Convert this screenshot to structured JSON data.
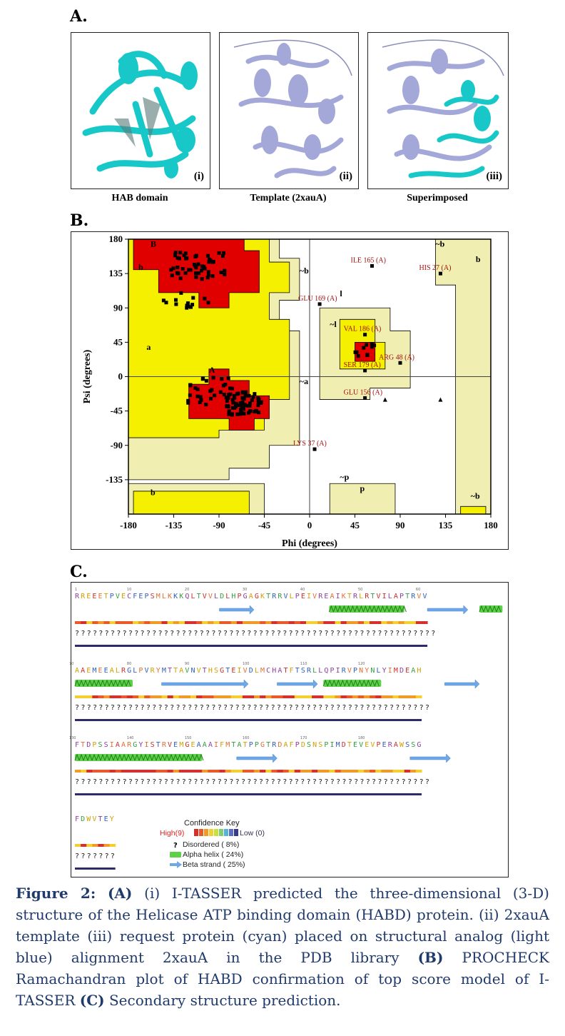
{
  "panel_a": {
    "label": "A.",
    "images": [
      {
        "numeral": "(i)",
        "caption": "HAB domain"
      },
      {
        "numeral": "(ii)",
        "caption": "Template  (2xauA)"
      },
      {
        "numeral": "(iii)",
        "caption": "Superimposed"
      }
    ]
  },
  "panel_b": {
    "label": "B.",
    "xlabel": "Phi (degrees)",
    "ylabel": "Psi (degrees)",
    "xticks": [
      "-180",
      "-135",
      "-90",
      "-45",
      "0",
      "45",
      "90",
      "135",
      "180"
    ],
    "yticks": [
      "180",
      "135",
      "90",
      "45",
      "0",
      "-45",
      "-90",
      "-135"
    ],
    "region_labels": [
      "B",
      "b",
      "a",
      "A",
      "b",
      "~b",
      "l",
      "~l",
      "~a",
      "~p",
      "p",
      "~b",
      "b",
      "~b"
    ],
    "annotations": [
      "ILE 165 (A)",
      "HIS 27 (A)",
      "GLU 169 (A)",
      "VAL 186 (A)",
      "ARG 48 (A)",
      "SER 179 (A)",
      "GLU 156 (A)",
      "LYS 37 (A)"
    ]
  },
  "panel_c": {
    "label": "C.",
    "rows": [
      {
        "seq": "RREEETPVECFEPSMLKKKQLTVVLDLHPGAGKTRRVLPEIVREAIKTRLRTVILAPTRVV",
        "numbers": [
          "1",
          "10",
          "20",
          "30",
          "40",
          "50",
          "60"
        ]
      },
      {
        "seq": "AAEMEEALRGLPVRYMTTAVNVTHSGTEIVDLMCHATFTSRLLQPIRVPNYNLYIMDEAH",
        "numbers": [
          "70",
          "80",
          "90",
          "100",
          "110",
          "120"
        ]
      },
      {
        "seq": "FTDPSSIAARGYISTRVEMGEAAAIFMTATPPGTRDAFPDSNSPIMDTEVEVPERAWSSG",
        "numbers": [
          "130",
          "140",
          "150",
          "160",
          "170",
          "180"
        ]
      },
      {
        "seq": "FDWVTEY",
        "numbers": []
      }
    ],
    "key": {
      "title": "Confidence Key",
      "high": "High(9)",
      "low": "Low (0)",
      "items": [
        "Disordered ( 8%)",
        "Alpha helix ( 24%)",
        "Beta strand ( 25%)"
      ]
    }
  },
  "caption": {
    "fig": "Figure 2:",
    "a": "(A)",
    "text1": " (i) I-TASSER predicted the three-dimensional (3-D) structure of the Helicase ATP binding domain (HABD) protein. (ii) 2xauA template (iii) request protein (cyan) placed on structural analog (light blue) alignment 2xauA in the PDB library ",
    "b": "(B)",
    "text2": " PROCHECK Ramachandran plot of HABD confirmation of top score model of I-TASSER ",
    "c": "(C)",
    "text3": " Secondary structure prediction."
  },
  "colors": {
    "core": "#e00000",
    "allowed": "#f5f000",
    "generous": "#f0eeb0",
    "cyan": "#18c8c8",
    "lavender": "#a4a8d8",
    "caption": "#1f3a6b"
  }
}
